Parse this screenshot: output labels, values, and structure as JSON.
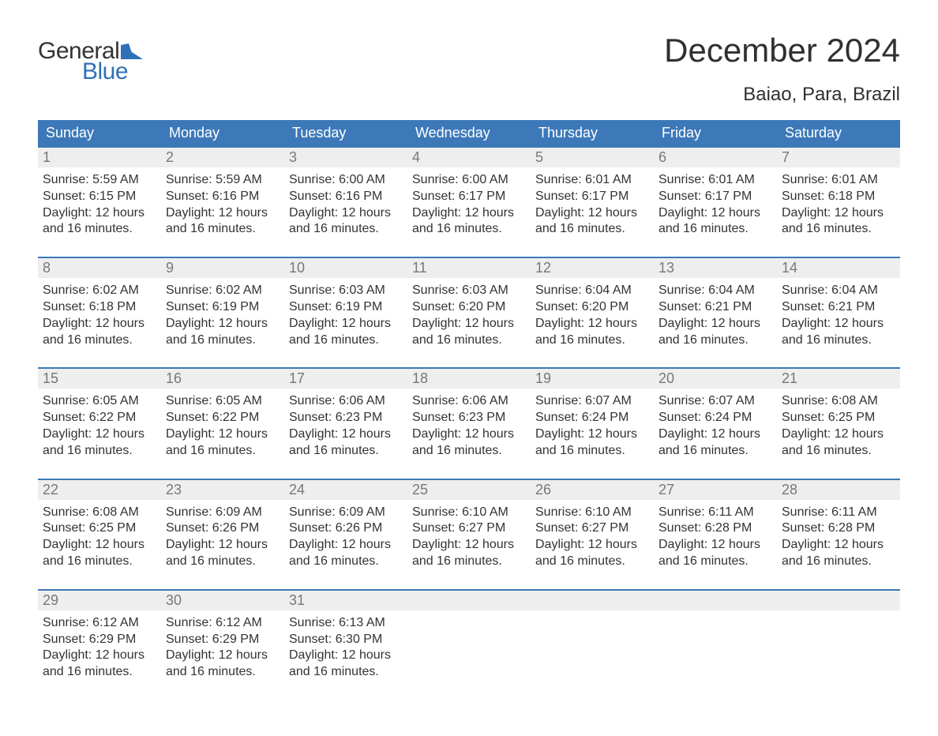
{
  "logo": {
    "text1": "General",
    "text2": "Blue",
    "flag_color": "#2f71b8",
    "text1_color": "#333333",
    "text2_color": "#2f71b8"
  },
  "title": "December 2024",
  "subtitle": "Baiao, Para, Brazil",
  "colors": {
    "header_bg": "#3d79b9",
    "header_text": "#ffffff",
    "row_border": "#3d79b9",
    "daynum_bg": "#eeeeee",
    "daynum_text": "#787878",
    "body_text": "#333333",
    "page_bg": "#ffffff"
  },
  "day_headers": [
    "Sunday",
    "Monday",
    "Tuesday",
    "Wednesday",
    "Thursday",
    "Friday",
    "Saturday"
  ],
  "weeks": [
    [
      {
        "num": "1",
        "sunrise": "5:59 AM",
        "sunset": "6:15 PM",
        "daylight": "12 hours and 16 minutes."
      },
      {
        "num": "2",
        "sunrise": "5:59 AM",
        "sunset": "6:16 PM",
        "daylight": "12 hours and 16 minutes."
      },
      {
        "num": "3",
        "sunrise": "6:00 AM",
        "sunset": "6:16 PM",
        "daylight": "12 hours and 16 minutes."
      },
      {
        "num": "4",
        "sunrise": "6:00 AM",
        "sunset": "6:17 PM",
        "daylight": "12 hours and 16 minutes."
      },
      {
        "num": "5",
        "sunrise": "6:01 AM",
        "sunset": "6:17 PM",
        "daylight": "12 hours and 16 minutes."
      },
      {
        "num": "6",
        "sunrise": "6:01 AM",
        "sunset": "6:17 PM",
        "daylight": "12 hours and 16 minutes."
      },
      {
        "num": "7",
        "sunrise": "6:01 AM",
        "sunset": "6:18 PM",
        "daylight": "12 hours and 16 minutes."
      }
    ],
    [
      {
        "num": "8",
        "sunrise": "6:02 AM",
        "sunset": "6:18 PM",
        "daylight": "12 hours and 16 minutes."
      },
      {
        "num": "9",
        "sunrise": "6:02 AM",
        "sunset": "6:19 PM",
        "daylight": "12 hours and 16 minutes."
      },
      {
        "num": "10",
        "sunrise": "6:03 AM",
        "sunset": "6:19 PM",
        "daylight": "12 hours and 16 minutes."
      },
      {
        "num": "11",
        "sunrise": "6:03 AM",
        "sunset": "6:20 PM",
        "daylight": "12 hours and 16 minutes."
      },
      {
        "num": "12",
        "sunrise": "6:04 AM",
        "sunset": "6:20 PM",
        "daylight": "12 hours and 16 minutes."
      },
      {
        "num": "13",
        "sunrise": "6:04 AM",
        "sunset": "6:21 PM",
        "daylight": "12 hours and 16 minutes."
      },
      {
        "num": "14",
        "sunrise": "6:04 AM",
        "sunset": "6:21 PM",
        "daylight": "12 hours and 16 minutes."
      }
    ],
    [
      {
        "num": "15",
        "sunrise": "6:05 AM",
        "sunset": "6:22 PM",
        "daylight": "12 hours and 16 minutes."
      },
      {
        "num": "16",
        "sunrise": "6:05 AM",
        "sunset": "6:22 PM",
        "daylight": "12 hours and 16 minutes."
      },
      {
        "num": "17",
        "sunrise": "6:06 AM",
        "sunset": "6:23 PM",
        "daylight": "12 hours and 16 minutes."
      },
      {
        "num": "18",
        "sunrise": "6:06 AM",
        "sunset": "6:23 PM",
        "daylight": "12 hours and 16 minutes."
      },
      {
        "num": "19",
        "sunrise": "6:07 AM",
        "sunset": "6:24 PM",
        "daylight": "12 hours and 16 minutes."
      },
      {
        "num": "20",
        "sunrise": "6:07 AM",
        "sunset": "6:24 PM",
        "daylight": "12 hours and 16 minutes."
      },
      {
        "num": "21",
        "sunrise": "6:08 AM",
        "sunset": "6:25 PM",
        "daylight": "12 hours and 16 minutes."
      }
    ],
    [
      {
        "num": "22",
        "sunrise": "6:08 AM",
        "sunset": "6:25 PM",
        "daylight": "12 hours and 16 minutes."
      },
      {
        "num": "23",
        "sunrise": "6:09 AM",
        "sunset": "6:26 PM",
        "daylight": "12 hours and 16 minutes."
      },
      {
        "num": "24",
        "sunrise": "6:09 AM",
        "sunset": "6:26 PM",
        "daylight": "12 hours and 16 minutes."
      },
      {
        "num": "25",
        "sunrise": "6:10 AM",
        "sunset": "6:27 PM",
        "daylight": "12 hours and 16 minutes."
      },
      {
        "num": "26",
        "sunrise": "6:10 AM",
        "sunset": "6:27 PM",
        "daylight": "12 hours and 16 minutes."
      },
      {
        "num": "27",
        "sunrise": "6:11 AM",
        "sunset": "6:28 PM",
        "daylight": "12 hours and 16 minutes."
      },
      {
        "num": "28",
        "sunrise": "6:11 AM",
        "sunset": "6:28 PM",
        "daylight": "12 hours and 16 minutes."
      }
    ],
    [
      {
        "num": "29",
        "sunrise": "6:12 AM",
        "sunset": "6:29 PM",
        "daylight": "12 hours and 16 minutes."
      },
      {
        "num": "30",
        "sunrise": "6:12 AM",
        "sunset": "6:29 PM",
        "daylight": "12 hours and 16 minutes."
      },
      {
        "num": "31",
        "sunrise": "6:13 AM",
        "sunset": "6:30 PM",
        "daylight": "12 hours and 16 minutes."
      },
      {
        "num": "",
        "sunrise": "",
        "sunset": "",
        "daylight": ""
      },
      {
        "num": "",
        "sunrise": "",
        "sunset": "",
        "daylight": ""
      },
      {
        "num": "",
        "sunrise": "",
        "sunset": "",
        "daylight": ""
      },
      {
        "num": "",
        "sunrise": "",
        "sunset": "",
        "daylight": ""
      }
    ]
  ],
  "labels": {
    "sunrise_prefix": "Sunrise: ",
    "sunset_prefix": "Sunset: ",
    "daylight_prefix": "Daylight: "
  }
}
